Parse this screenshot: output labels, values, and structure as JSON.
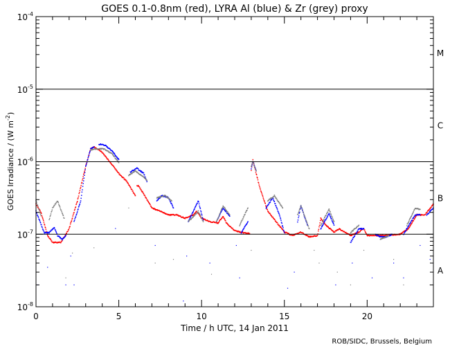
{
  "chart_data": {
    "type": "scatter",
    "title": "GOES 0.1-0.8nm (red), LYRA Al (blue) & Zr (grey) proxy",
    "xlabel": "Time / h UTC, 14 Jan 2011",
    "ylabel": "GOES Irradiance / (W m",
    "ylabel_exp": "-2",
    "ylabel_close": ")",
    "xlim": [
      0,
      24
    ],
    "ylim": [
      1e-08,
      0.0001
    ],
    "yscale": "log",
    "x_ticks": [
      {
        "v": 0,
        "label": "0"
      },
      {
        "v": 5,
        "label": "5"
      },
      {
        "v": 10,
        "label": "10"
      },
      {
        "v": 15,
        "label": "15"
      },
      {
        "v": 20,
        "label": "20"
      }
    ],
    "y_ticks": [
      {
        "v": 0.0001,
        "base": "10",
        "exp": "-4"
      },
      {
        "v": 1e-05,
        "base": "10",
        "exp": "-5"
      },
      {
        "v": 1e-06,
        "base": "10",
        "exp": "-6"
      },
      {
        "v": 1e-07,
        "base": "10",
        "exp": "-7"
      },
      {
        "v": 1e-08,
        "base": "10",
        "exp": "-8"
      }
    ],
    "threshold_lines": [
      1e-05,
      1e-06,
      1e-07
    ],
    "flare_classes": [
      {
        "label": "M",
        "v": 3.2e-05
      },
      {
        "label": "C",
        "v": 3.2e-06
      },
      {
        "label": "B",
        "v": 3.2e-07
      },
      {
        "label": "A",
        "v": 3.2e-08
      }
    ],
    "series": [
      {
        "name": "GOES 0.1-0.8nm",
        "color": "#ff0000",
        "segments": [
          [
            [
              0,
              2.6e-07
            ],
            [
              0.3,
              2e-07
            ],
            [
              0.7,
              9.6e-08
            ],
            [
              1.0,
              7.7e-08
            ],
            [
              1.5,
              7.7e-08
            ],
            [
              2.0,
              1.19e-07
            ],
            [
              2.5,
              2.88e-07
            ],
            [
              3.0,
              8.6e-07
            ],
            [
              3.3,
              1.5e-06
            ],
            [
              3.5,
              1.6e-06
            ],
            [
              4.0,
              1.34e-06
            ],
            [
              4.5,
              9.7e-07
            ],
            [
              5.0,
              6.9e-07
            ],
            [
              5.5,
              5.3e-07
            ],
            [
              6.0,
              3.4e-07
            ]
          ],
          [
            [
              6.1,
              4.7e-07
            ],
            [
              6.2,
              4.6e-07
            ],
            [
              6.5,
              3.6e-07
            ],
            [
              7.0,
              2.3e-07
            ],
            [
              7.5,
              2.07e-07
            ],
            [
              8.0,
              1.85e-07
            ],
            [
              8.5,
              1.85e-07
            ],
            [
              9.0,
              1.66e-07
            ],
            [
              9.5,
              1.85e-07
            ],
            [
              9.7,
              2.07e-07
            ],
            [
              10.0,
              1.66e-07
            ],
            [
              10.5,
              1.49e-07
            ],
            [
              11.0,
              1.43e-07
            ],
            [
              11.3,
              1.77e-07
            ],
            [
              11.5,
              1.43e-07
            ],
            [
              12.0,
              1.12e-07
            ],
            [
              12.5,
              1.05e-07
            ],
            [
              12.9,
              1.02e-07
            ]
          ],
          [
            [
              13.0,
              7.7e-07
            ],
            [
              13.1,
              1.05e-06
            ],
            [
              13.5,
              4.5e-07
            ],
            [
              14.0,
              2.07e-07
            ],
            [
              14.5,
              1.49e-07
            ],
            [
              15.0,
              1.07e-07
            ],
            [
              15.5,
              9.6e-08
            ],
            [
              16.0,
              1.07e-07
            ],
            [
              16.5,
              9.2e-08
            ],
            [
              17.0,
              9.6e-08
            ],
            [
              17.2,
              1.66e-07
            ],
            [
              17.5,
              1.33e-07
            ],
            [
              18.0,
              1.07e-07
            ],
            [
              18.3,
              1.19e-07
            ],
            [
              19.0,
              9.6e-08
            ],
            [
              19.5,
              1.07e-07
            ],
            [
              19.8,
              1.19e-07
            ],
            [
              20.0,
              9.6e-08
            ],
            [
              21.0,
              9.6e-08
            ],
            [
              22.0,
              1e-07
            ],
            [
              22.5,
              1.19e-07
            ],
            [
              23.0,
              1.85e-07
            ],
            [
              23.5,
              1.85e-07
            ],
            [
              24.0,
              2.6e-07
            ]
          ]
        ]
      },
      {
        "name": "LYRA Al proxy",
        "color": "#0000ff",
        "segments": [
          [
            [
              0,
              2.07e-07
            ],
            [
              0.5,
              1.05e-07
            ],
            [
              0.8,
              1.05e-07
            ],
            [
              1.1,
              1.24e-07
            ],
            [
              1.3,
              9.6e-08
            ],
            [
              1.6,
              8.5e-08
            ],
            [
              1.8,
              9.6e-08
            ]
          ],
          [
            [
              2.3,
              1.49e-07
            ],
            [
              2.7,
              2.88e-07
            ],
            [
              3.0,
              8.6e-07
            ],
            [
              3.3,
              1.5e-06
            ],
            [
              3.5,
              1.6e-06
            ]
          ],
          [
            [
              3.8,
              1.7e-06
            ],
            [
              3.9,
              1.75e-06
            ],
            [
              4.2,
              1.67e-06
            ],
            [
              4.6,
              1.4e-06
            ],
            [
              5.0,
              1.07e-06
            ]
          ],
          [
            [
              5.7,
              7.2e-07
            ],
            [
              6.1,
              8.1e-07
            ],
            [
              6.5,
              6.9e-07
            ],
            [
              6.7,
              5.3e-07
            ]
          ],
          [
            [
              7.3,
              2.88e-07
            ],
            [
              7.6,
              3.4e-07
            ],
            [
              8.0,
              3.2e-07
            ],
            [
              8.3,
              2.3e-07
            ]
          ],
          [
            [
              9.2,
              1.49e-07
            ],
            [
              9.6,
              2.3e-07
            ],
            [
              9.8,
              2.88e-07
            ],
            [
              10.1,
              1.56e-07
            ]
          ],
          [
            [
              10.9,
              1.49e-07
            ],
            [
              11.3,
              2.3e-07
            ],
            [
              11.7,
              1.77e-07
            ]
          ],
          [
            [
              12.4,
              1.05e-07
            ],
            [
              12.8,
              1.49e-07
            ]
          ],
          [
            [
              13.0,
              8e-07
            ],
            [
              13.1,
              1.01e-06
            ],
            [
              13.3,
              7.5e-07
            ]
          ],
          [
            [
              13.9,
              2.3e-07
            ],
            [
              14.3,
              3.2e-07
            ],
            [
              14.7,
              1.85e-07
            ],
            [
              15.0,
              1.05e-07
            ]
          ],
          [
            [
              15.8,
              1.49e-07
            ],
            [
              16.0,
              2.46e-07
            ],
            [
              16.4,
              1.33e-07
            ]
          ],
          [
            [
              17.2,
              1.19e-07
            ],
            [
              17.7,
              1.93e-07
            ],
            [
              18.0,
              1.33e-07
            ]
          ],
          [
            [
              19.0,
              7.7e-08
            ],
            [
              19.5,
              1.19e-07
            ],
            [
              19.8,
              1.19e-07
            ]
          ],
          [
            [
              20.5,
              1e-07
            ],
            [
              20.8,
              9.2e-08
            ],
            [
              21.2,
              9.2e-08
            ],
            [
              21.5,
              1e-07
            ]
          ],
          [
            [
              22.2,
              1e-07
            ],
            [
              22.4,
              1.19e-07
            ],
            [
              22.9,
              1.85e-07
            ],
            [
              23.2,
              1.85e-07
            ]
          ],
          [
            [
              23.6,
              1.85e-07
            ],
            [
              24.0,
              2.3e-07
            ]
          ]
        ]
      },
      {
        "name": "LYRA Zr proxy",
        "color": "#808080",
        "segments": [
          [
            [
              0,
              2.88e-07
            ],
            [
              0.3,
              1.8e-07
            ]
          ],
          [
            [
              0.8,
              1.6e-07
            ],
            [
              1.0,
              2.3e-07
            ],
            [
              1.3,
              2.88e-07
            ],
            [
              1.7,
              1.66e-07
            ]
          ],
          [
            [
              3.3,
              1.45e-06
            ],
            [
              3.5,
              1.5e-06
            ],
            [
              4.1,
              1.5e-06
            ],
            [
              4.6,
              1.28e-06
            ],
            [
              5.0,
              9.7e-07
            ]
          ],
          [
            [
              5.6,
              6.5e-07
            ],
            [
              6.0,
              7.4e-07
            ],
            [
              6.5,
              6.2e-07
            ],
            [
              6.7,
              5.5e-07
            ]
          ],
          [
            [
              7.3,
              3.2e-07
            ],
            [
              7.8,
              3.4e-07
            ],
            [
              8.2,
              2.88e-07
            ]
          ],
          [
            [
              9.2,
              1.49e-07
            ],
            [
              9.8,
              2.07e-07
            ],
            [
              10.1,
              1.49e-07
            ]
          ],
          [
            [
              10.9,
              1.49e-07
            ],
            [
              11.3,
              2.46e-07
            ],
            [
              11.7,
              1.85e-07
            ]
          ],
          [
            [
              12.3,
              1.33e-07
            ],
            [
              12.8,
              2.3e-07
            ]
          ],
          [
            [
              13.0,
              8.5e-07
            ],
            [
              13.1,
              1e-06
            ],
            [
              13.3,
              7.5e-07
            ]
          ],
          [
            [
              14.0,
              2.88e-07
            ],
            [
              14.4,
              3.4e-07
            ],
            [
              14.9,
              2.3e-07
            ]
          ],
          [
            [
              15.8,
              1.85e-07
            ],
            [
              16.0,
              2.46e-07
            ],
            [
              16.5,
              1.19e-07
            ]
          ],
          [
            [
              17.2,
              1.33e-07
            ],
            [
              17.7,
              2.2e-07
            ],
            [
              18.0,
              1.49e-07
            ]
          ],
          [
            [
              19.0,
              1.05e-07
            ],
            [
              19.5,
              1.33e-07
            ]
          ],
          [
            [
              20.8,
              8.5e-08
            ],
            [
              21.3,
              9.6e-08
            ]
          ],
          [
            [
              22.4,
              1.33e-07
            ],
            [
              22.9,
              2.3e-07
            ],
            [
              23.2,
              2.2e-07
            ]
          ]
        ]
      }
    ],
    "outliers": [
      {
        "color": "#0000ff",
        "points": [
          [
            0.1,
            2e-08
          ],
          [
            0.7,
            3.5e-08
          ],
          [
            1.8,
            2e-08
          ],
          [
            2.3,
            2e-08
          ],
          [
            2.1,
            5e-08
          ],
          [
            4.8,
            1.2e-07
          ],
          [
            7.2,
            7e-08
          ],
          [
            8.9,
            1.2e-08
          ],
          [
            9.1,
            5e-08
          ],
          [
            10.5,
            4e-08
          ],
          [
            12.1,
            7e-08
          ],
          [
            12.3,
            2.5e-08
          ],
          [
            15.2,
            1.8e-08
          ],
          [
            15.6,
            3e-08
          ],
          [
            18.1,
            2e-08
          ],
          [
            19.1,
            4e-08
          ],
          [
            20.3,
            2.5e-08
          ],
          [
            21.6,
            4e-08
          ],
          [
            22.2,
            2.5e-08
          ],
          [
            23.2,
            7e-08
          ],
          [
            23.8,
            4.5e-08
          ]
        ]
      },
      {
        "color": "#808080",
        "points": [
          [
            1.8,
            2.5e-08
          ],
          [
            2.2,
            5.5e-08
          ],
          [
            3.5,
            6.5e-08
          ],
          [
            5.6,
            2.3e-07
          ],
          [
            7.2,
            4e-08
          ],
          [
            8.3,
            4.5e-08
          ],
          [
            10.6,
            2.8e-08
          ],
          [
            13.0,
            6e-08
          ],
          [
            16.8,
            6e-08
          ],
          [
            17.1,
            4e-08
          ],
          [
            18.2,
            3e-08
          ],
          [
            19.0,
            2e-08
          ],
          [
            19.8,
            6e-08
          ],
          [
            21.6,
            4.5e-08
          ],
          [
            22.2,
            2e-08
          ],
          [
            23.8,
            2e-08
          ]
        ]
      }
    ],
    "grid": false,
    "credit": "ROB/SIDC, Brussels, Belgium"
  }
}
